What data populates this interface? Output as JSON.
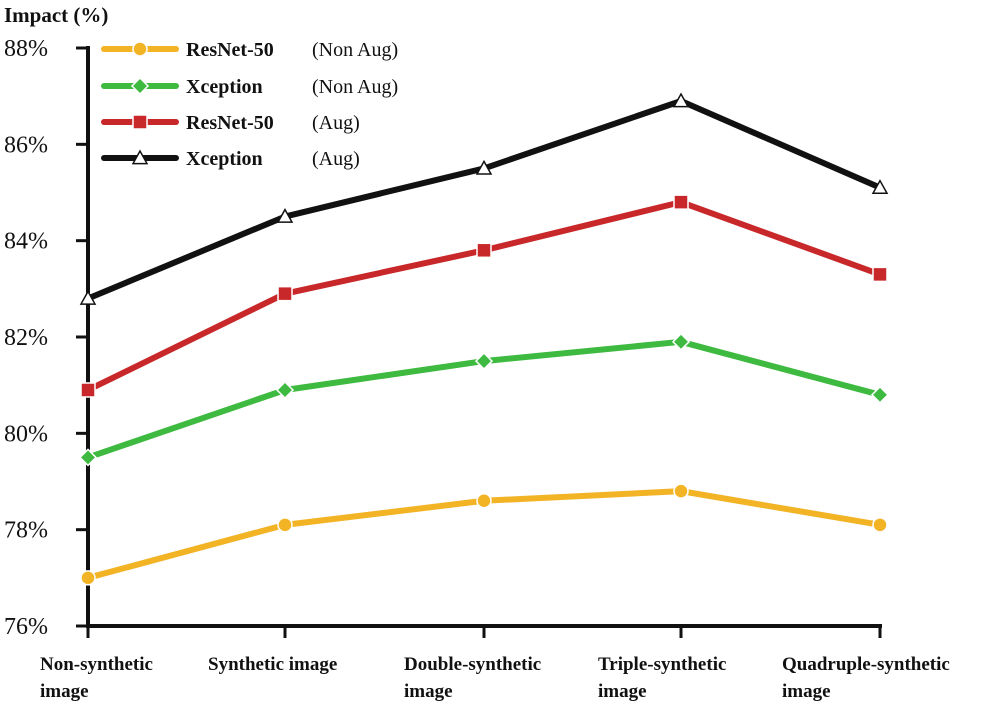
{
  "chart_data": {
    "type": "line",
    "title": "",
    "ylabel": "Impact (%)",
    "xlabel": "",
    "ylim": [
      76,
      88
    ],
    "y_ticks": [
      "76%",
      "78%",
      "80%",
      "82%",
      "84%",
      "86%",
      "88%"
    ],
    "y_tick_values": [
      76,
      78,
      80,
      82,
      84,
      86,
      88
    ],
    "categories": [
      [
        "Non-synthetic",
        "image"
      ],
      [
        "Synthetic image"
      ],
      [
        "Double-synthetic",
        "image"
      ],
      [
        "Triple-synthetic",
        "image"
      ],
      [
        "Quadruple-synthetic",
        "image"
      ]
    ],
    "legend_position": "top-left",
    "series": [
      {
        "name": "ResNet-50",
        "qualifier": "(Non Aug)",
        "color": "#f2b325",
        "marker": "circle",
        "values": [
          77.0,
          78.1,
          78.6,
          78.8,
          78.1
        ]
      },
      {
        "name": "Xception",
        "qualifier": "(Non Aug)",
        "color": "#3dba3f",
        "marker": "diamond",
        "values": [
          79.5,
          80.9,
          81.5,
          81.9,
          80.8
        ]
      },
      {
        "name": "ResNet-50",
        "qualifier": "(Aug)",
        "color": "#c8282a",
        "marker": "square",
        "values": [
          80.9,
          82.9,
          83.8,
          84.8,
          83.3
        ]
      },
      {
        "name": "Xception",
        "qualifier": "(Aug)",
        "color": "#111111",
        "marker": "triangle",
        "values": [
          82.8,
          84.5,
          85.5,
          86.9,
          85.1
        ]
      }
    ]
  }
}
